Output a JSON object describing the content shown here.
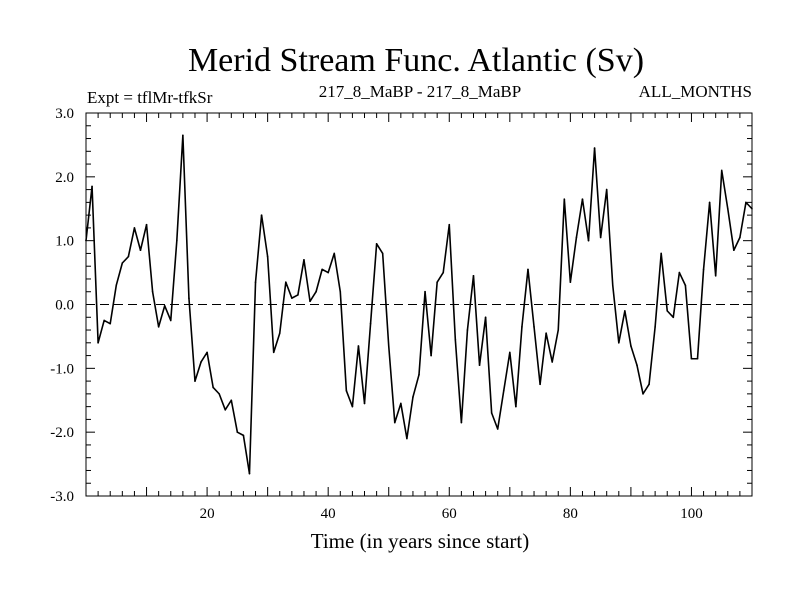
{
  "chart_data": {
    "type": "line",
    "title": "Merid Stream Func. Atlantic (Sv)",
    "subtitle_left": "Expt = tflMr-tfkSr",
    "subtitle_center": "217_8_MaBP - 217_8_MaBP",
    "subtitle_right": "ALL_MONTHS",
    "xlabel": "Time (in years since start)",
    "ylabel": "",
    "xlim": [
      0,
      110
    ],
    "ylim": [
      -3.0,
      3.0
    ],
    "x_ticks": [
      20,
      40,
      60,
      80,
      100
    ],
    "x_tick_labels": [
      "20",
      "40",
      "60",
      "80",
      "100"
    ],
    "y_ticks": [
      -3.0,
      -2.0,
      -1.0,
      0.0,
      1.0,
      2.0,
      3.0
    ],
    "y_tick_labels": [
      "-3.0",
      "-2.0",
      "-1.0",
      "0.0",
      "1.0",
      "2.0",
      "3.0"
    ],
    "reference_line": {
      "y": 0.0,
      "style": "dashed"
    },
    "series": [
      {
        "name": "Merid Stream Func.",
        "x": [
          0,
          1,
          2,
          3,
          4,
          5,
          6,
          7,
          8,
          9,
          10,
          11,
          12,
          13,
          14,
          15,
          16,
          17,
          18,
          19,
          20,
          21,
          22,
          23,
          24,
          25,
          26,
          27,
          28,
          29,
          30,
          31,
          32,
          33,
          34,
          35,
          36,
          37,
          38,
          39,
          40,
          41,
          42,
          43,
          44,
          45,
          46,
          47,
          48,
          49,
          50,
          51,
          52,
          53,
          54,
          55,
          56,
          57,
          58,
          59,
          60,
          61,
          62,
          63,
          64,
          65,
          66,
          67,
          68,
          69,
          70,
          71,
          72,
          73,
          74,
          75,
          76,
          77,
          78,
          79,
          80,
          81,
          82,
          83,
          84,
          85,
          86,
          87,
          88,
          89,
          90,
          91,
          92,
          93,
          94,
          95,
          96,
          97,
          98,
          99,
          100,
          101,
          102,
          103,
          104,
          105,
          106,
          107,
          108,
          109,
          110
        ],
        "values": [
          1.0,
          1.85,
          -0.6,
          -0.25,
          -0.3,
          0.3,
          0.65,
          0.75,
          1.2,
          0.85,
          1.25,
          0.2,
          -0.35,
          -0.02,
          -0.25,
          1.0,
          2.65,
          0.1,
          -1.2,
          -0.9,
          -0.75,
          -1.3,
          -1.4,
          -1.65,
          -1.5,
          -2.0,
          -2.05,
          -2.65,
          0.35,
          1.4,
          0.75,
          -0.75,
          -0.45,
          0.35,
          0.1,
          0.15,
          0.7,
          0.05,
          0.2,
          0.55,
          0.5,
          0.8,
          0.2,
          -1.35,
          -1.6,
          -0.65,
          -1.55,
          -0.3,
          0.95,
          0.8,
          -0.65,
          -1.85,
          -1.55,
          -2.1,
          -1.45,
          -1.1,
          0.2,
          -0.8,
          0.35,
          0.5,
          1.25,
          -0.55,
          -1.85,
          -0.4,
          0.45,
          -0.95,
          -0.2,
          -1.7,
          -1.95,
          -1.35,
          -0.75,
          -1.6,
          -0.35,
          0.55,
          -0.35,
          -1.25,
          -0.45,
          -0.9,
          -0.4,
          1.65,
          0.35,
          1.05,
          1.65,
          1.0,
          2.45,
          1.05,
          1.8,
          0.3,
          -0.6,
          -0.1,
          -0.65,
          -0.95,
          -1.4,
          -1.25,
          -0.35,
          0.8,
          -0.1,
          -0.2,
          0.5,
          0.3,
          -0.85,
          -0.85,
          0.55,
          1.6,
          0.45,
          2.1,
          1.5,
          0.85,
          1.05,
          1.6,
          1.5
        ]
      }
    ]
  }
}
